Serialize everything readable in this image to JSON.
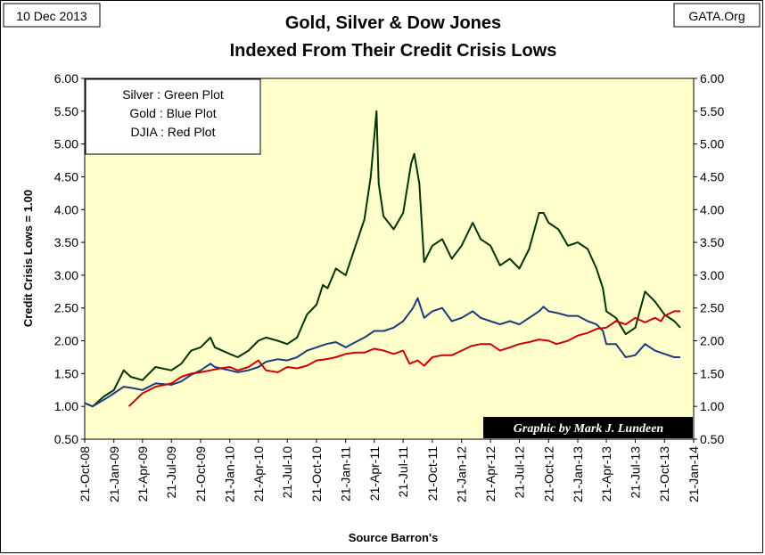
{
  "date_badge": "10 Dec 2013",
  "source_badge": "GATA.Org",
  "chart_data": {
    "type": "line",
    "title_line1": "Gold, Silver & Dow Jones",
    "title_line2": "Indexed From Their Credit Crisis Lows",
    "ylabel": "Credit Crisis Lows = 1.00",
    "xlabel": "Source Barron's",
    "credit": "Graphic by Mark J. Lundeen",
    "ylim": [
      0.5,
      6.0
    ],
    "xlim": [
      "2008-10-21",
      "2014-01-21"
    ],
    "y_ticks": [
      "0.50",
      "1.00",
      "1.50",
      "2.00",
      "2.50",
      "3.00",
      "3.50",
      "4.00",
      "4.50",
      "5.00",
      "5.50",
      "6.00"
    ],
    "x_ticks": [
      "21-Oct-08",
      "21-Jan-09",
      "21-Apr-09",
      "21-Jul-09",
      "21-Oct-09",
      "21-Jan-10",
      "21-Apr-10",
      "21-Jul-10",
      "21-Oct-10",
      "21-Jan-11",
      "21-Apr-11",
      "21-Jul-11",
      "21-Oct-11",
      "21-Jan-12",
      "21-Apr-12",
      "21-Jul-12",
      "21-Oct-12",
      "21-Jan-13",
      "21-Apr-13",
      "21-Jul-13",
      "21-Oct-13",
      "21-Jan-14"
    ],
    "legend": [
      "Silver : Green Plot",
      "Gold : Blue Plot",
      "DJIA : Red Plot"
    ],
    "colors": {
      "background": "#ffffcc",
      "silver": "#003300",
      "gold": "#1f3a7a",
      "djia": "#cc0000"
    },
    "series": [
      {
        "name": "Silver : Green Plot",
        "color": "#003300",
        "x": [
          "2008-10-21",
          "2008-11-15",
          "2008-12-20",
          "2009-01-21",
          "2009-02-21",
          "2009-03-15",
          "2009-04-21",
          "2009-06-01",
          "2009-07-21",
          "2009-08-21",
          "2009-09-21",
          "2009-10-21",
          "2009-11-21",
          "2009-12-05",
          "2010-01-21",
          "2010-02-15",
          "2010-03-21",
          "2010-04-21",
          "2010-05-15",
          "2010-06-21",
          "2010-07-21",
          "2010-08-21",
          "2010-09-21",
          "2010-10-21",
          "2010-11-10",
          "2010-11-25",
          "2010-12-21",
          "2011-01-21",
          "2011-02-21",
          "2011-03-21",
          "2011-04-10",
          "2011-04-28",
          "2011-05-05",
          "2011-05-20",
          "2011-06-21",
          "2011-07-21",
          "2011-08-15",
          "2011-08-25",
          "2011-09-10",
          "2011-09-25",
          "2011-10-21",
          "2011-11-21",
          "2011-12-21",
          "2012-01-21",
          "2012-02-25",
          "2012-03-21",
          "2012-04-21",
          "2012-05-21",
          "2012-06-21",
          "2012-07-21",
          "2012-08-21",
          "2012-09-21",
          "2012-10-05",
          "2012-10-21",
          "2012-11-21",
          "2012-12-21",
          "2013-01-21",
          "2013-02-21",
          "2013-03-21",
          "2013-04-10",
          "2013-04-21",
          "2013-05-21",
          "2013-06-21",
          "2013-07-21",
          "2013-08-21",
          "2013-09-21",
          "2013-10-21",
          "2013-11-21",
          "2013-12-10"
        ],
        "values": [
          1.05,
          1.0,
          1.15,
          1.25,
          1.55,
          1.45,
          1.4,
          1.6,
          1.55,
          1.65,
          1.85,
          1.9,
          2.05,
          1.9,
          1.8,
          1.75,
          1.85,
          2.0,
          2.05,
          2.0,
          1.95,
          2.05,
          2.4,
          2.55,
          2.85,
          2.8,
          3.1,
          3.0,
          3.45,
          3.85,
          4.5,
          5.5,
          4.4,
          3.9,
          3.7,
          3.95,
          4.7,
          4.85,
          4.4,
          3.2,
          3.45,
          3.55,
          3.25,
          3.45,
          3.8,
          3.55,
          3.45,
          3.15,
          3.25,
          3.1,
          3.4,
          3.95,
          3.95,
          3.8,
          3.7,
          3.45,
          3.5,
          3.4,
          3.1,
          2.8,
          2.45,
          2.35,
          2.1,
          2.2,
          2.75,
          2.6,
          2.4,
          2.3,
          2.2
        ]
      },
      {
        "name": "Gold : Blue Plot",
        "color": "#1f3a7a",
        "x": [
          "2008-10-21",
          "2008-11-15",
          "2008-12-20",
          "2009-01-21",
          "2009-02-21",
          "2009-03-21",
          "2009-04-21",
          "2009-06-01",
          "2009-07-21",
          "2009-08-21",
          "2009-09-21",
          "2009-10-21",
          "2009-11-21",
          "2009-12-05",
          "2010-01-21",
          "2010-02-15",
          "2010-03-21",
          "2010-04-21",
          "2010-05-15",
          "2010-06-21",
          "2010-07-21",
          "2010-08-21",
          "2010-09-21",
          "2010-10-21",
          "2010-11-21",
          "2010-12-21",
          "2011-01-21",
          "2011-02-21",
          "2011-03-21",
          "2011-04-21",
          "2011-05-21",
          "2011-06-21",
          "2011-07-21",
          "2011-08-21",
          "2011-09-05",
          "2011-09-25",
          "2011-10-21",
          "2011-11-21",
          "2011-12-21",
          "2012-01-21",
          "2012-02-25",
          "2012-03-21",
          "2012-04-21",
          "2012-05-21",
          "2012-06-21",
          "2012-07-21",
          "2012-08-21",
          "2012-09-21",
          "2012-10-05",
          "2012-10-21",
          "2012-11-21",
          "2012-12-21",
          "2013-01-21",
          "2013-02-21",
          "2013-03-21",
          "2013-04-10",
          "2013-04-21",
          "2013-05-21",
          "2013-06-21",
          "2013-07-21",
          "2013-08-21",
          "2013-09-21",
          "2013-10-21",
          "2013-11-21",
          "2013-12-10"
        ],
        "values": [
          1.05,
          1.0,
          1.1,
          1.2,
          1.3,
          1.28,
          1.25,
          1.35,
          1.33,
          1.38,
          1.48,
          1.55,
          1.65,
          1.6,
          1.55,
          1.52,
          1.55,
          1.6,
          1.68,
          1.72,
          1.7,
          1.75,
          1.85,
          1.9,
          1.95,
          1.98,
          1.9,
          1.98,
          2.05,
          2.15,
          2.15,
          2.2,
          2.3,
          2.5,
          2.65,
          2.35,
          2.45,
          2.5,
          2.3,
          2.35,
          2.45,
          2.35,
          2.3,
          2.25,
          2.3,
          2.25,
          2.35,
          2.45,
          2.52,
          2.45,
          2.42,
          2.38,
          2.38,
          2.3,
          2.25,
          2.15,
          1.95,
          1.95,
          1.75,
          1.78,
          1.95,
          1.85,
          1.8,
          1.75,
          1.75
        ]
      },
      {
        "name": "DJIA : Red Plot",
        "color": "#cc0000",
        "x": [
          "2009-03-09",
          "2009-04-21",
          "2009-06-01",
          "2009-07-21",
          "2009-08-21",
          "2009-09-21",
          "2009-10-21",
          "2009-11-21",
          "2009-12-21",
          "2010-01-21",
          "2010-02-15",
          "2010-03-21",
          "2010-04-21",
          "2010-05-15",
          "2010-06-21",
          "2010-07-21",
          "2010-08-21",
          "2010-09-21",
          "2010-10-21",
          "2010-11-21",
          "2010-12-21",
          "2011-01-21",
          "2011-02-21",
          "2011-03-21",
          "2011-04-21",
          "2011-05-21",
          "2011-06-21",
          "2011-07-21",
          "2011-08-10",
          "2011-09-05",
          "2011-09-25",
          "2011-10-21",
          "2011-11-21",
          "2011-12-21",
          "2012-01-21",
          "2012-02-21",
          "2012-03-21",
          "2012-04-21",
          "2012-05-21",
          "2012-06-21",
          "2012-07-21",
          "2012-08-21",
          "2012-09-21",
          "2012-10-21",
          "2012-11-15",
          "2012-12-21",
          "2013-01-21",
          "2013-02-21",
          "2013-03-21",
          "2013-04-21",
          "2013-05-21",
          "2013-06-21",
          "2013-07-21",
          "2013-08-21",
          "2013-09-21",
          "2013-10-10",
          "2013-10-21",
          "2013-11-21",
          "2013-12-10"
        ],
        "values": [
          1.0,
          1.2,
          1.3,
          1.35,
          1.45,
          1.5,
          1.52,
          1.55,
          1.58,
          1.6,
          1.55,
          1.6,
          1.7,
          1.55,
          1.52,
          1.6,
          1.58,
          1.62,
          1.7,
          1.72,
          1.75,
          1.8,
          1.82,
          1.82,
          1.88,
          1.85,
          1.8,
          1.85,
          1.65,
          1.7,
          1.62,
          1.75,
          1.78,
          1.78,
          1.85,
          1.92,
          1.95,
          1.95,
          1.85,
          1.9,
          1.95,
          1.98,
          2.02,
          2.0,
          1.95,
          2.0,
          2.08,
          2.12,
          2.18,
          2.2,
          2.3,
          2.25,
          2.35,
          2.28,
          2.35,
          2.3,
          2.38,
          2.45,
          2.45
        ]
      }
    ]
  }
}
